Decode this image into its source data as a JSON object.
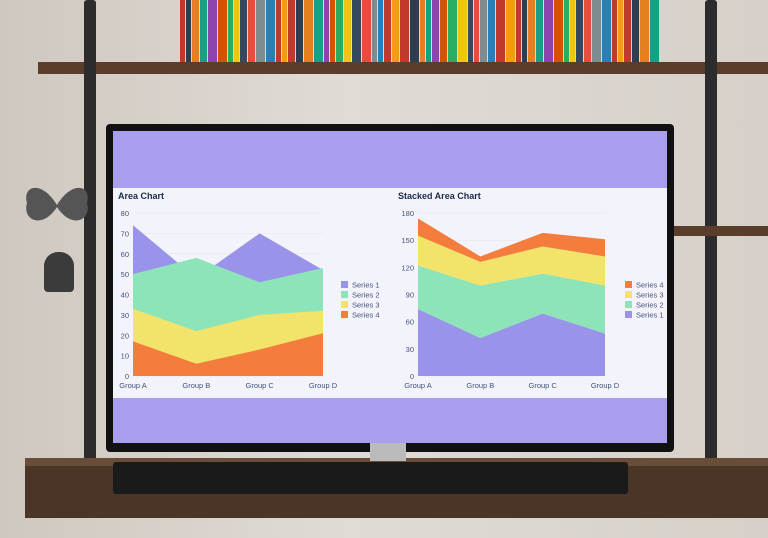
{
  "chart_data": [
    {
      "type": "area",
      "title": "Area Chart",
      "categories": [
        "Group A",
        "Group B",
        "Group C",
        "Group D"
      ],
      "ylim": [
        0,
        80
      ],
      "yticks": [
        0,
        10,
        20,
        30,
        40,
        50,
        60,
        70,
        80
      ],
      "legend_position": "right",
      "series": [
        {
          "name": "Series 1",
          "values": [
            74,
            48,
            70,
            52
          ],
          "color": "#9a93ea"
        },
        {
          "name": "Series 2",
          "values": [
            50,
            58,
            46,
            53
          ],
          "color": "#8de4b8"
        },
        {
          "name": "Series 3",
          "values": [
            33,
            22,
            30,
            32
          ],
          "color": "#f2e36b"
        },
        {
          "name": "Series 4",
          "values": [
            17,
            6,
            13,
            21
          ],
          "color": "#f47c3c"
        }
      ]
    },
    {
      "type": "stacked-area",
      "title": "Stacked Area Chart",
      "categories": [
        "Group A",
        "Group B",
        "Group C",
        "Group D"
      ],
      "ylim": [
        0,
        180
      ],
      "yticks": [
        0,
        30,
        60,
        90,
        120,
        150,
        180
      ],
      "legend_position": "right",
      "legend_order": [
        "Series 4",
        "Series 3",
        "Series 2",
        "Series 1"
      ],
      "series": [
        {
          "name": "Series 1",
          "values": [
            74,
            42,
            69,
            47
          ],
          "color": "#9a93ea"
        },
        {
          "name": "Series 2",
          "values": [
            48,
            58,
            44,
            53
          ],
          "color": "#8de4b8"
        },
        {
          "name": "Series 3",
          "values": [
            33,
            26,
            30,
            32
          ],
          "color": "#f2e36b"
        },
        {
          "name": "Series 4",
          "values": [
            19,
            6,
            15,
            19
          ],
          "color": "#f47c3c"
        }
      ]
    }
  ]
}
